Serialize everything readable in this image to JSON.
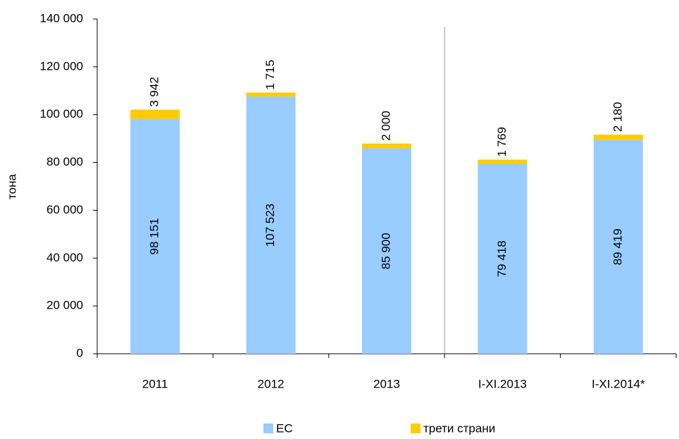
{
  "chart_data": {
    "type": "stacked_bar",
    "y_label": "тона",
    "categories": [
      "2011",
      "2012",
      "2013",
      "I-XI.2013",
      "I-XI.2014*"
    ],
    "series": [
      {
        "name": "ЕС",
        "color": "#99ccff",
        "values": [
          98151,
          107523,
          85900,
          79418,
          89419
        ],
        "value_labels": [
          "98 151",
          "107 523",
          "85 900",
          "79 418",
          "89 419"
        ]
      },
      {
        "name": "трети страни",
        "color": "#ffcc00",
        "values": [
          3942,
          1715,
          2000,
          1769,
          2180
        ],
        "value_labels": [
          "3 942",
          "1 715",
          "2 000",
          "1 769",
          "2 180"
        ]
      }
    ],
    "ylim": [
      0,
      140000
    ],
    "yticks": [
      {
        "value": 0,
        "label": "0"
      },
      {
        "value": 20000,
        "label": "20 000"
      },
      {
        "value": 40000,
        "label": "40 000"
      },
      {
        "value": 60000,
        "label": "60 000"
      },
      {
        "value": 80000,
        "label": "80 000"
      },
      {
        "value": 100000,
        "label": "100 000"
      },
      {
        "value": 120000,
        "label": "120 000"
      },
      {
        "value": 140000,
        "label": "140 000"
      }
    ],
    "grid": false,
    "legend": "bottom"
  }
}
